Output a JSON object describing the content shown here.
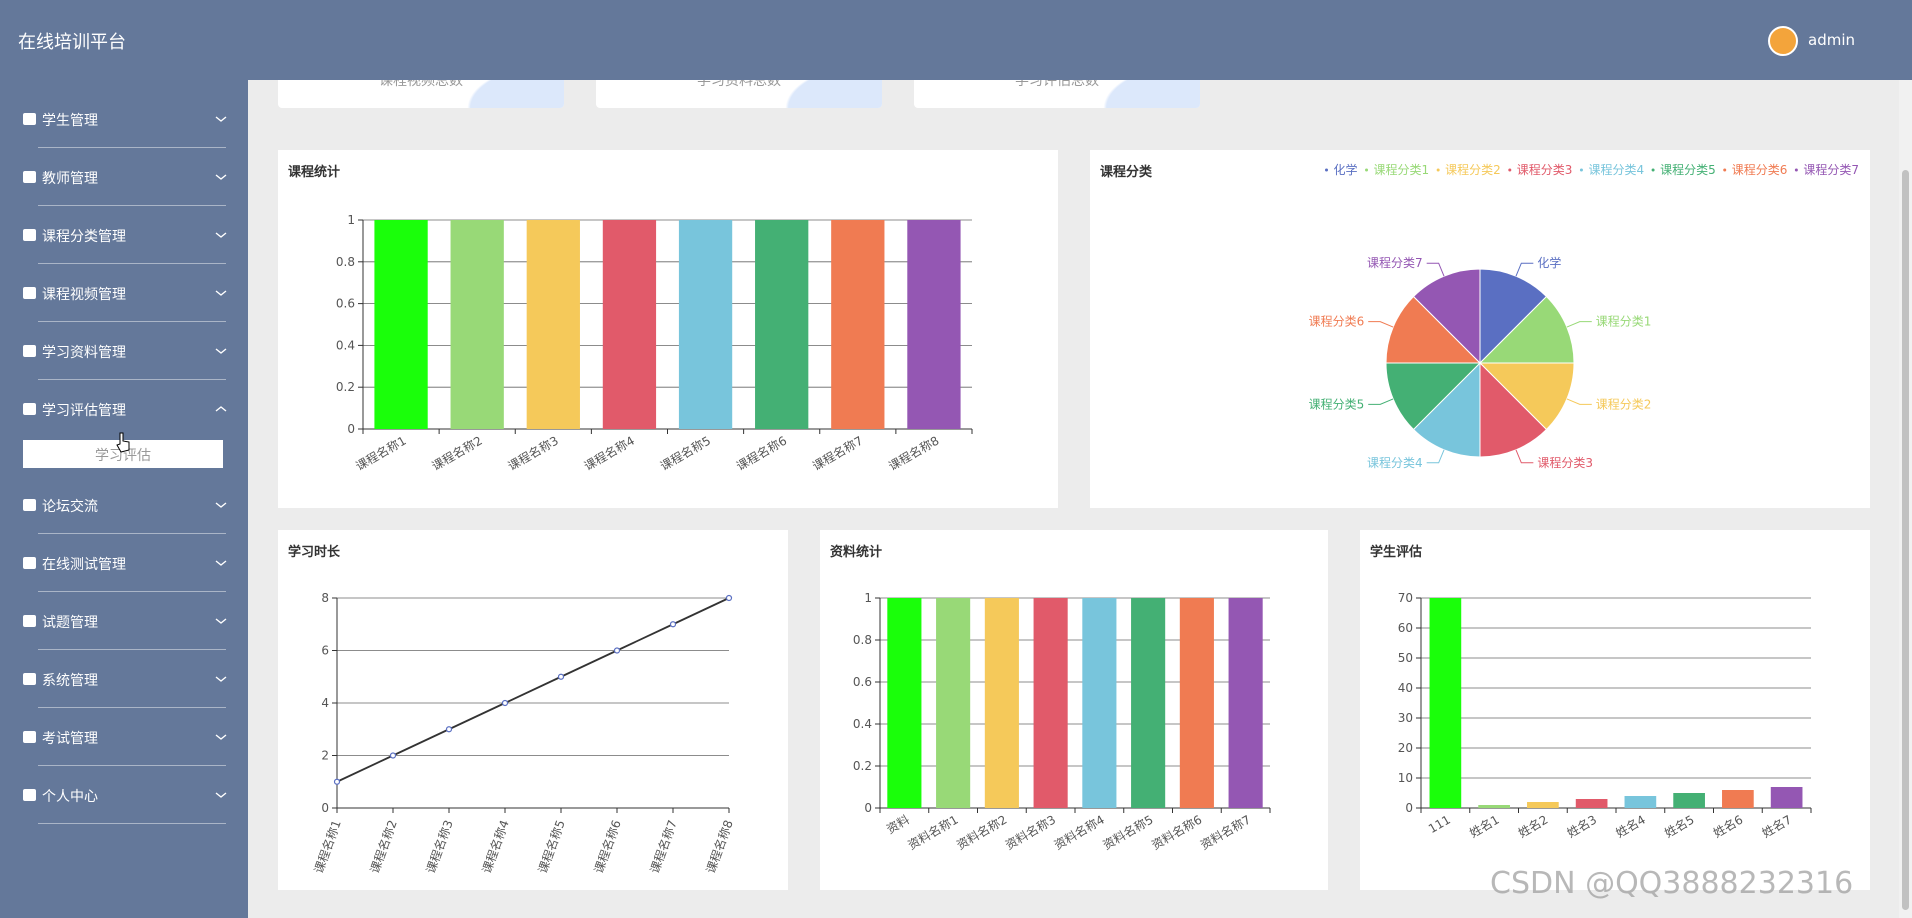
{
  "header": {
    "title": "在线培训平台",
    "user": "admin"
  },
  "sidebar": {
    "items": [
      {
        "label": "学生管理"
      },
      {
        "label": "教师管理"
      },
      {
        "label": "课程分类管理"
      },
      {
        "label": "课程视频管理"
      },
      {
        "label": "学习资料管理"
      },
      {
        "label": "学习评估管理",
        "expanded": true,
        "children": [
          "学习评估"
        ]
      },
      {
        "label": "论坛交流"
      },
      {
        "label": "在线测试管理"
      },
      {
        "label": "试题管理"
      },
      {
        "label": "系统管理"
      },
      {
        "label": "考试管理"
      },
      {
        "label": "个人中心"
      }
    ]
  },
  "stats": [
    {
      "label": "课程视频总数"
    },
    {
      "label": "学习资料总数"
    },
    {
      "label": "学习评估总数"
    }
  ],
  "chart_data": [
    {
      "type": "bar",
      "title": "课程统计",
      "categories": [
        "课程名称1",
        "课程名称2",
        "课程名称3",
        "课程名称4",
        "课程名称5",
        "课程名称6",
        "课程名称7",
        "课程名称8"
      ],
      "values": [
        1,
        1,
        1,
        1,
        1,
        1,
        1,
        1
      ],
      "colors": [
        "#1aff0a",
        "#98d977",
        "#f5c95a",
        "#e15a6a",
        "#78c5dc",
        "#44b074",
        "#f07b52",
        "#9457b3"
      ],
      "ylim": [
        0,
        1
      ],
      "yticks": [
        0,
        0.2,
        0.4,
        0.6,
        0.8,
        1
      ],
      "grid": true
    },
    {
      "type": "pie",
      "title": "课程分类",
      "categories": [
        "化学",
        "课程分类1",
        "课程分类2",
        "课程分类3",
        "课程分类4",
        "课程分类5",
        "课程分类6",
        "课程分类7"
      ],
      "values": [
        1,
        1,
        1,
        1,
        1,
        1,
        1,
        1
      ],
      "colors": [
        "#5a6fc2",
        "#98d977",
        "#f5c95a",
        "#e15a6a",
        "#78c5dc",
        "#44b074",
        "#f07b52",
        "#9457b3"
      ],
      "legend": "top-right"
    },
    {
      "type": "line",
      "title": "学习时长",
      "categories": [
        "课程名称1",
        "课程名称2",
        "课程名称3",
        "课程名称4",
        "课程名称5",
        "课程名称6",
        "课程名称7",
        "课程名称8"
      ],
      "values": [
        1,
        2,
        3,
        4,
        5,
        6,
        7,
        8
      ],
      "color": "#333333",
      "marker_color": "#5a6fc2",
      "ylim": [
        0,
        8
      ],
      "yticks": [
        0,
        2,
        4,
        6,
        8
      ],
      "grid": true
    },
    {
      "type": "bar",
      "title": "资料统计",
      "categories": [
        "资料",
        "资料名称1",
        "资料名称2",
        "资料名称3",
        "资料名称4",
        "资料名称5",
        "资料名称6",
        "资料名称7"
      ],
      "values": [
        1,
        1,
        1,
        1,
        1,
        1,
        1,
        1
      ],
      "colors": [
        "#1aff0a",
        "#98d977",
        "#f5c95a",
        "#e15a6a",
        "#78c5dc",
        "#44b074",
        "#f07b52",
        "#9457b3"
      ],
      "ylim": [
        0,
        1
      ],
      "yticks": [
        0,
        0.2,
        0.4,
        0.6,
        0.8,
        1
      ],
      "grid": true
    },
    {
      "type": "bar",
      "title": "学生评估",
      "categories": [
        "111",
        "姓名1",
        "姓名2",
        "姓名3",
        "姓名4",
        "姓名5",
        "姓名6",
        "姓名7"
      ],
      "values": [
        70,
        1,
        2,
        3,
        4,
        5,
        6,
        7
      ],
      "colors": [
        "#1aff0a",
        "#98d977",
        "#f5c95a",
        "#e15a6a",
        "#78c5dc",
        "#44b074",
        "#f07b52",
        "#9457b3"
      ],
      "ylim": [
        0,
        70
      ],
      "yticks": [
        0,
        10,
        20,
        30,
        40,
        50,
        60,
        70
      ],
      "grid": true
    }
  ],
  "watermark": "CSDN @QQ3888232316"
}
